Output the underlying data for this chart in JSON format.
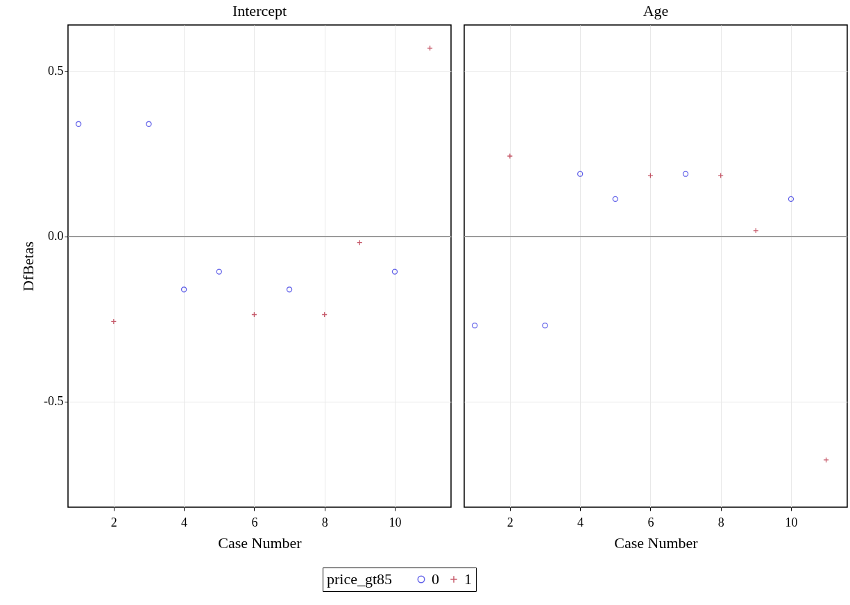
{
  "chart_data": [
    {
      "type": "scatter",
      "title": "Intercept",
      "xlabel": "Case Number",
      "ylabel": "DfBetas",
      "legend_title": "price_gt85",
      "xlim": [
        0.7,
        11.6
      ],
      "xticks": [
        2,
        4,
        6,
        8,
        10
      ],
      "ylim": [
        -0.82,
        0.64
      ],
      "yticks": [
        {
          "value": -0.5,
          "label": "-0.5"
        },
        {
          "value": 0,
          "label": "0.0"
        },
        {
          "value": 0.5,
          "label": "0.5"
        }
      ],
      "grid": true,
      "legend": "bottom",
      "ref_lines": [
        {
          "axis": "y",
          "value": 0,
          "label": null,
          "color": "#808080"
        }
      ],
      "series": [
        {
          "name": "0",
          "color": "#2020e0",
          "marker": "circle",
          "x": [
            1,
            3,
            4,
            5,
            7,
            10
          ],
          "values": [
            0.34,
            0.34,
            -0.161,
            -0.107,
            -0.161,
            -0.107
          ]
        },
        {
          "name": "1",
          "color": "#b0172e",
          "marker": "cross",
          "x": [
            2,
            6,
            8,
            9,
            11
          ],
          "values": [
            -0.258,
            -0.237,
            -0.237,
            -0.019,
            0.57
          ]
        }
      ]
    },
    {
      "type": "scatter",
      "title": "Age",
      "xlabel": "Case Number",
      "xlim": [
        0.7,
        11.6
      ],
      "xticks": [
        2,
        4,
        6,
        8,
        10
      ],
      "ylim": [
        -0.82,
        0.64
      ],
      "yticks": [
        -0.5,
        0,
        0.5
      ],
      "grid": true,
      "tick_labels": "x",
      "ref_lines": [
        {
          "axis": "y",
          "value": 0,
          "label": null,
          "color": "#808080"
        }
      ],
      "series": [
        {
          "name": "0",
          "color": "#2020e0",
          "marker": "circle",
          "x": [
            1,
            3,
            4,
            5,
            7,
            10
          ],
          "values": [
            -0.27,
            -0.27,
            0.189,
            0.113,
            0.189,
            0.113
          ]
        },
        {
          "name": "1",
          "color": "#b0172e",
          "marker": "cross",
          "x": [
            2,
            6,
            8,
            9,
            11
          ],
          "values": [
            0.243,
            0.184,
            0.184,
            0.017,
            -0.677
          ]
        }
      ]
    }
  ]
}
